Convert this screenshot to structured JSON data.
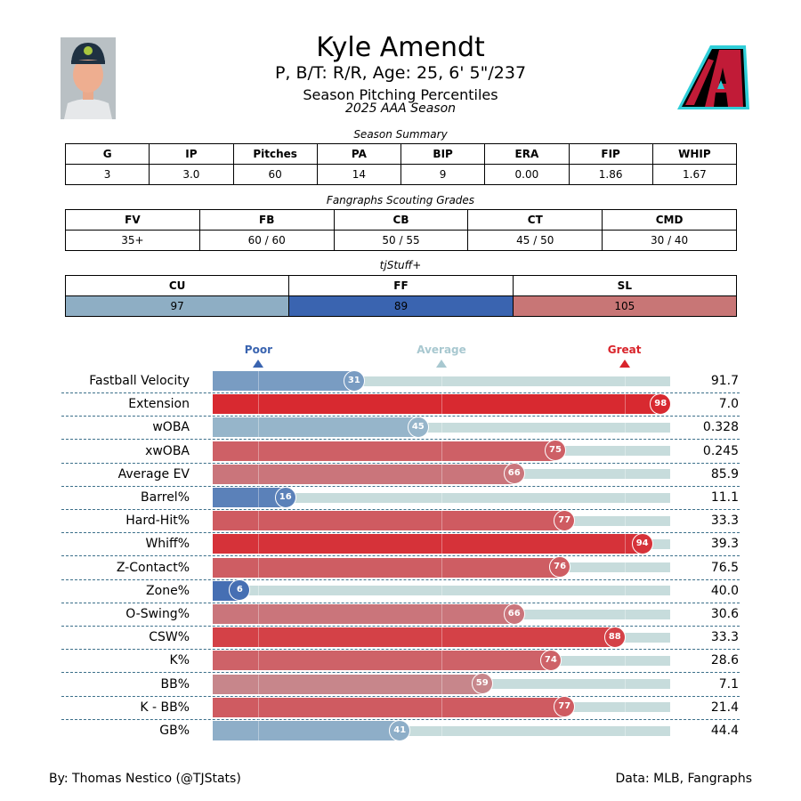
{
  "header": {
    "player_name": "Kyle Amendt",
    "player_info": "P, B/T: R/R, Age: 25, 6' 5\"/237",
    "description": "Season Pitching Percentiles",
    "season": "2025 AAA Season"
  },
  "season_summary": {
    "caption": "Season Summary",
    "headers": [
      "G",
      "IP",
      "Pitches",
      "PA",
      "BIP",
      "ERA",
      "FIP",
      "WHIP"
    ],
    "values": [
      "3",
      "3.0",
      "60",
      "14",
      "9",
      "0.00",
      "1.86",
      "1.67"
    ]
  },
  "scouting": {
    "caption": "Fangraphs Scouting Grades",
    "headers": [
      "FV",
      "FB",
      "CB",
      "CT",
      "CMD"
    ],
    "values": [
      "35+",
      "60 / 60",
      "50 / 55",
      "45 / 50",
      "30 / 40"
    ]
  },
  "tjstuff": {
    "caption": "tjStuff+",
    "headers": [
      "CU",
      "FF",
      "SL"
    ],
    "values": [
      "97",
      "89",
      "105"
    ],
    "colors": [
      "#8eaec4",
      "#3a64b0",
      "#c87676"
    ]
  },
  "chart_data": {
    "type": "bar",
    "title": "Season Pitching Percentiles",
    "xlim": [
      0,
      100
    ],
    "scale_labels": [
      {
        "label": "Poor",
        "percentile": 10,
        "color": "#3a64b0"
      },
      {
        "label": "Average",
        "percentile": 50,
        "color": "#a8c8d0"
      },
      {
        "label": "Great",
        "percentile": 90,
        "color": "#d9242b"
      }
    ],
    "stats": [
      {
        "label": "Fastball Velocity",
        "percentile": 31,
        "value": "91.7"
      },
      {
        "label": "Extension",
        "percentile": 98,
        "value": "7.0"
      },
      {
        "label": "wOBA",
        "percentile": 45,
        "value": "0.328"
      },
      {
        "label": "xwOBA",
        "percentile": 75,
        "value": "0.245"
      },
      {
        "label": "Average EV",
        "percentile": 66,
        "value": "85.9"
      },
      {
        "label": "Barrel%",
        "percentile": 16,
        "value": "11.1"
      },
      {
        "label": "Hard-Hit%",
        "percentile": 77,
        "value": "33.3"
      },
      {
        "label": "Whiff%",
        "percentile": 94,
        "value": "39.3"
      },
      {
        "label": "Z-Contact%",
        "percentile": 76,
        "value": "76.5"
      },
      {
        "label": "Zone%",
        "percentile": 6,
        "value": "40.0"
      },
      {
        "label": "O-Swing%",
        "percentile": 66,
        "value": "30.6"
      },
      {
        "label": "CSW%",
        "percentile": 88,
        "value": "33.3"
      },
      {
        "label": "K%",
        "percentile": 74,
        "value": "28.6"
      },
      {
        "label": "BB%",
        "percentile": 59,
        "value": "7.1"
      },
      {
        "label": "K - BB%",
        "percentile": 77,
        "value": "21.4"
      },
      {
        "label": "GB%",
        "percentile": 41,
        "value": "44.4"
      }
    ]
  },
  "footer": {
    "credit": "By: Thomas Nestico (@TJStats)",
    "source": "Data: MLB, Fangraphs"
  },
  "colors": {
    "poor": "#3a64b0",
    "great": "#d9242b",
    "track": "#c7dcdc"
  }
}
